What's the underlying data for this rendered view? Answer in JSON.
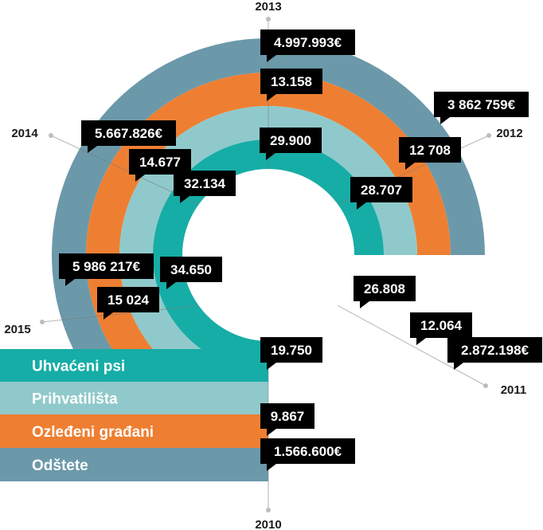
{
  "chart_data": {
    "type": "radial-bar",
    "years": [
      "2010",
      "2011",
      "2012",
      "2013",
      "2014",
      "2015"
    ],
    "series": [
      {
        "name": "Uhvaćeni psi",
        "color": "#16ada6",
        "values": [
          19750,
          26808,
          28707,
          29900,
          32134,
          34650
        ],
        "labels": [
          "19.750",
          "26.808",
          "28.707",
          "29.900",
          "32.134",
          "34.650"
        ]
      },
      {
        "name": "Prihvatilišta",
        "color": "#90c9cb",
        "values": [
          null,
          null,
          null,
          null,
          null,
          null
        ],
        "labels": [
          "",
          "",
          "",
          "",
          "",
          ""
        ]
      },
      {
        "name": "Ozleđeni građani",
        "color": "#ee7f32",
        "values": [
          9867,
          12064,
          12708,
          13158,
          14677,
          15024
        ],
        "labels": [
          "9.867",
          "12.064",
          "12 708",
          "13.158",
          "14.677",
          "15 024"
        ]
      },
      {
        "name": "Odštete",
        "color": "#6b99aa",
        "values": [
          1566600,
          2872198,
          3862759,
          4997993,
          5667826,
          5986217
        ],
        "labels": [
          "1.566.600€",
          "2.872.198€",
          "3 862 759€",
          "4.997.993€",
          "5.667.826€",
          "5 986 217€"
        ]
      }
    ]
  }
}
